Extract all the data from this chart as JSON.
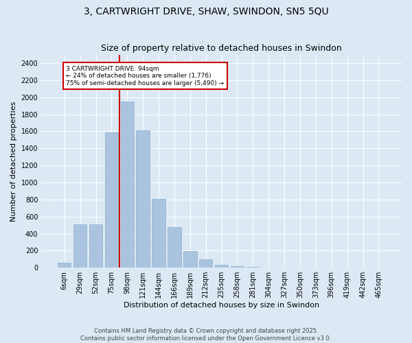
{
  "title": "3, CARTWRIGHT DRIVE, SHAW, SWINDON, SN5 5QU",
  "subtitle": "Size of property relative to detached houses in Swindon",
  "xlabel": "Distribution of detached houses by size in Swindon",
  "ylabel": "Number of detached properties",
  "footnote": "Contains HM Land Registry data © Crown copyright and database right 2025.\nContains public sector information licensed under the Open Government Licence v3.0.",
  "bar_labels": [
    "6sqm",
    "29sqm",
    "52sqm",
    "75sqm",
    "98sqm",
    "121sqm",
    "144sqm",
    "166sqm",
    "189sqm",
    "212sqm",
    "235sqm",
    "258sqm",
    "281sqm",
    "304sqm",
    "327sqm",
    "350sqm",
    "373sqm",
    "396sqm",
    "419sqm",
    "442sqm",
    "465sqm"
  ],
  "bar_values": [
    55,
    510,
    510,
    1590,
    1950,
    1610,
    810,
    480,
    195,
    95,
    35,
    20,
    10,
    5,
    2,
    2,
    0,
    0,
    0,
    0,
    5
  ],
  "bar_color": "#aac4df",
  "bar_edge_color": "#8ab0d0",
  "ylim": [
    0,
    2500
  ],
  "yticks": [
    0,
    200,
    400,
    600,
    800,
    1000,
    1200,
    1400,
    1600,
    1800,
    2000,
    2200,
    2400
  ],
  "vline_x_index": 4,
  "vline_color": "#cc0000",
  "annotation_title": "3 CARTWRIGHT DRIVE: 94sqm",
  "annotation_line1": "← 24% of detached houses are smaller (1,776)",
  "annotation_line2": "75% of semi-detached houses are larger (5,490) →",
  "annotation_box_color": "#cc0000",
  "bg_color": "#dce9f5",
  "plot_bg_color": "#dce9f5",
  "grid_color": "#ffffff",
  "title_fontsize": 10,
  "subtitle_fontsize": 9,
  "label_fontsize": 8,
  "tick_fontsize": 7,
  "footnote_fontsize": 6
}
